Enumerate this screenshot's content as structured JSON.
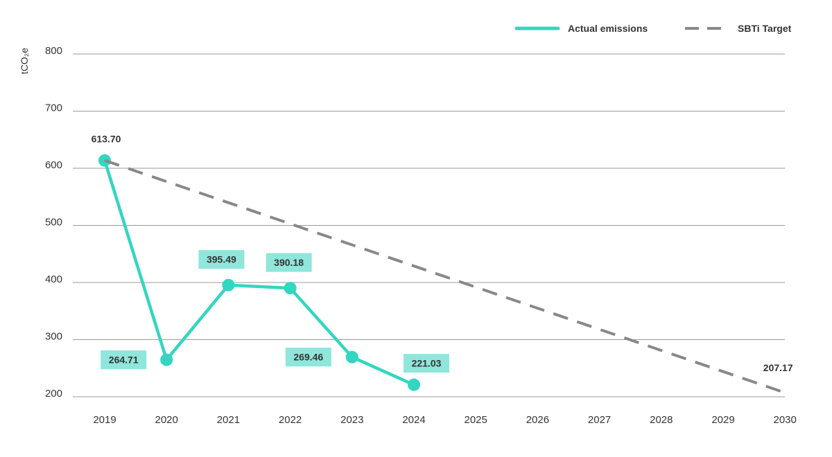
{
  "chart_data": {
    "type": "line",
    "title": "",
    "xlabel": "",
    "ylabel": "tCO₂e",
    "ylim": [
      200,
      800
    ],
    "yticks": [
      "200",
      "300",
      "400",
      "500",
      "600",
      "700",
      "800"
    ],
    "x": [
      "2019",
      "2020",
      "2021",
      "2022",
      "2023",
      "2024",
      "2025",
      "2026",
      "2027",
      "2028",
      "2029",
      "2030"
    ],
    "grid": true,
    "legend_position": "top-right",
    "series": [
      {
        "name": "Actual emissions",
        "style": "solid",
        "color": "#33d6c0",
        "x": [
          "2019",
          "2020",
          "2021",
          "2022",
          "2023",
          "2024"
        ],
        "values": [
          613.7,
          264.71,
          395.49,
          390.18,
          269.46,
          221.03
        ],
        "labels": [
          "613.70",
          "264.71",
          "395.49",
          "390.18",
          "269.46",
          "221.03"
        ],
        "label_boxed": [
          false,
          true,
          true,
          true,
          true,
          true
        ]
      },
      {
        "name": "SBTi Target",
        "style": "dashed",
        "color": "#888888",
        "x": [
          "2019",
          "2030"
        ],
        "values": [
          613.7,
          207.17
        ],
        "labels": [
          "",
          "207.17"
        ]
      }
    ]
  }
}
